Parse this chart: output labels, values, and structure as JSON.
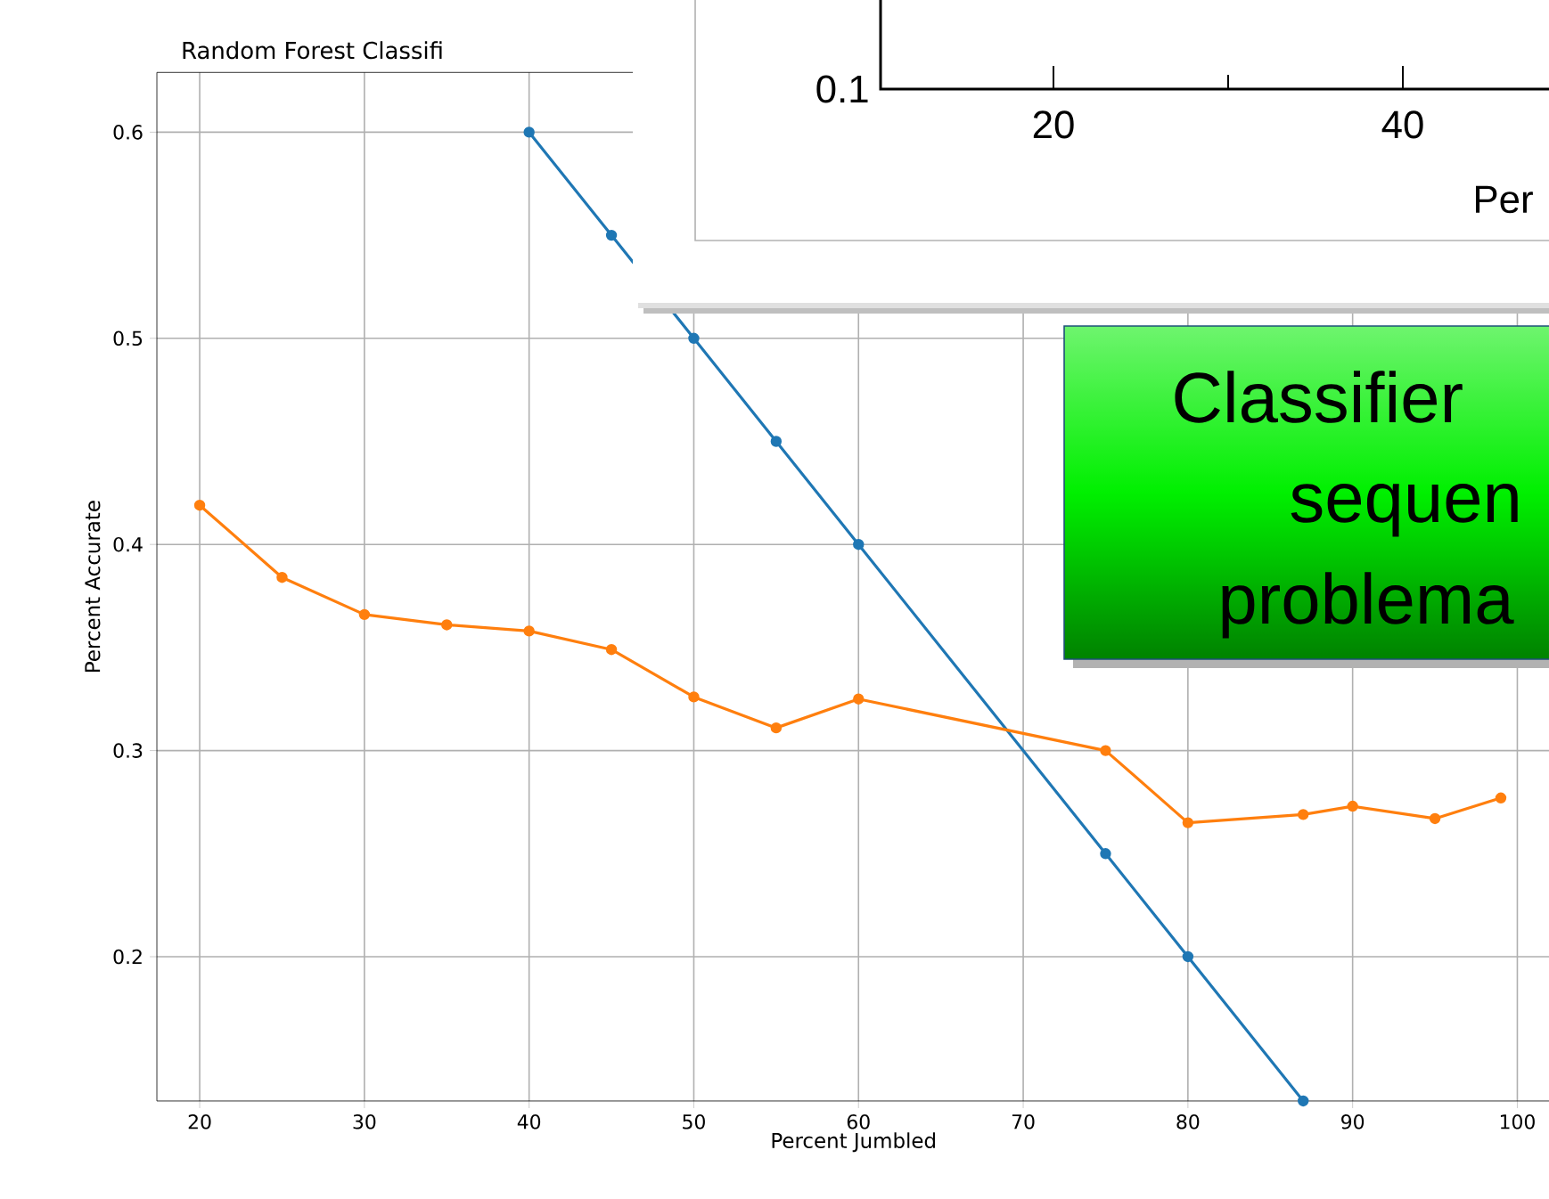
{
  "chart_data": [
    {
      "type": "line",
      "title": "Random Forest Classifi",
      "xlabel": "Percent Jumbled",
      "ylabel": "Percent Accurate",
      "xlim": [
        17.4,
        102
      ],
      "xticks": [
        20,
        30,
        40,
        50,
        60,
        70,
        80,
        90,
        100
      ],
      "ylim": [
        0.13,
        0.629
      ],
      "yticks": [
        0.2,
        0.3,
        0.4,
        0.5,
        0.6
      ],
      "grid": true,
      "marker": "circle",
      "series": [
        {
          "color": "#1f77b4",
          "x": [
            40,
            45,
            50,
            55,
            60,
            75,
            80,
            87
          ],
          "values": [
            0.6,
            0.55,
            0.5,
            0.45,
            0.4,
            0.25,
            0.2,
            0.13
          ]
        },
        {
          "color": "#ff7f0e",
          "x": [
            20,
            25,
            30,
            35,
            40,
            45,
            50,
            55,
            60,
            75,
            80,
            87,
            90,
            95,
            99
          ],
          "values": [
            0.419,
            0.384,
            0.366,
            0.361,
            0.358,
            0.349,
            0.326,
            0.311,
            0.325,
            0.3,
            0.265,
            0.269,
            0.273,
            0.267,
            0.277
          ]
        }
      ],
      "annotations": [
        "Classifier",
        "sequen",
        "problema"
      ]
    },
    {
      "type": "other",
      "annotations": [
        "0.1",
        "20",
        "40",
        "Per"
      ]
    }
  ]
}
